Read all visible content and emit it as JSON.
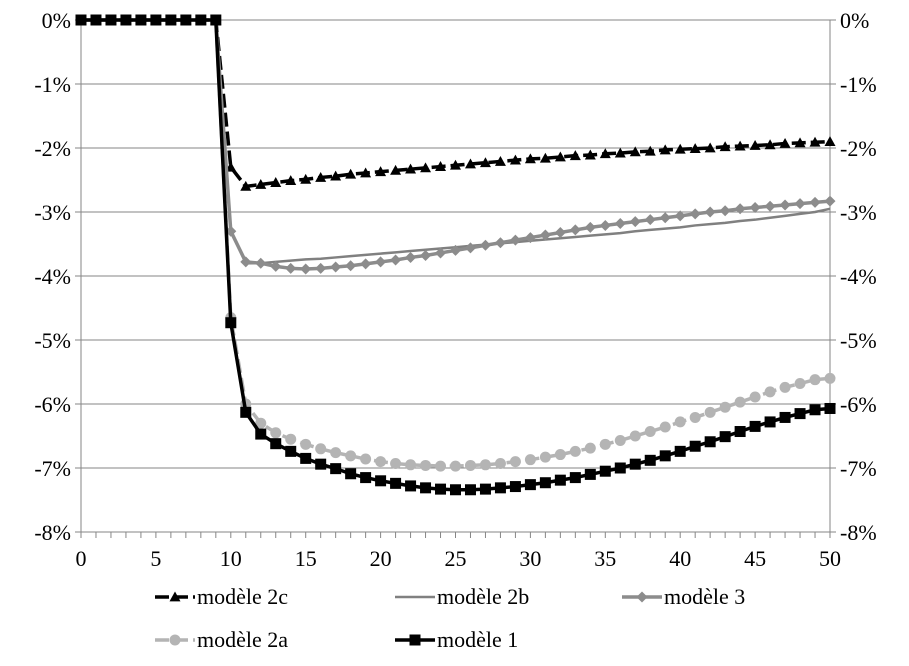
{
  "chart_data": {
    "type": "line",
    "title": "",
    "xlabel": "",
    "ylabel": "",
    "xlim": [
      0,
      50
    ],
    "ylim": [
      -8,
      0
    ],
    "x_ticks": [
      0,
      5,
      10,
      15,
      20,
      25,
      30,
      35,
      40,
      45,
      50
    ],
    "y_ticks": [
      "0%",
      "-1%",
      "-2%",
      "-3%",
      "-4%",
      "-5%",
      "-6%",
      "-7%",
      "-8%"
    ],
    "y_ticks_right": [
      "0%",
      "-1%",
      "-2%",
      "-3%",
      "-4%",
      "-5%",
      "-6%",
      "-7%",
      "-8%"
    ],
    "grid": "horizontal",
    "legend_position": "bottom",
    "series": [
      {
        "name": "modèle 2c",
        "color": "#000000",
        "marker": "triangle",
        "dash": true,
        "x": [
          0,
          1,
          2,
          3,
          4,
          5,
          6,
          7,
          8,
          9,
          10,
          11,
          12,
          13,
          14,
          15,
          16,
          17,
          18,
          19,
          20,
          21,
          22,
          23,
          24,
          25,
          26,
          27,
          28,
          29,
          30,
          31,
          32,
          33,
          34,
          35,
          36,
          37,
          38,
          39,
          40,
          41,
          42,
          43,
          44,
          45,
          46,
          47,
          48,
          49,
          50
        ],
        "y": [
          0,
          0,
          0,
          0,
          0,
          0,
          0,
          0,
          0,
          0,
          -2.3,
          -2.6,
          -2.57,
          -2.54,
          -2.51,
          -2.49,
          -2.46,
          -2.44,
          -2.41,
          -2.39,
          -2.37,
          -2.35,
          -2.33,
          -2.31,
          -2.29,
          -2.27,
          -2.25,
          -2.23,
          -2.21,
          -2.19,
          -2.17,
          -2.16,
          -2.14,
          -2.12,
          -2.11,
          -2.09,
          -2.08,
          -2.06,
          -2.05,
          -2.03,
          -2.02,
          -2.01,
          -2.0,
          -1.98,
          -1.97,
          -1.96,
          -1.95,
          -1.93,
          -1.92,
          -1.91,
          -1.9
        ]
      },
      {
        "name": "modèle 2b",
        "color": "#808080",
        "marker": "none",
        "dash": false,
        "x": [
          0,
          1,
          2,
          3,
          4,
          5,
          6,
          7,
          8,
          9,
          10,
          11,
          12,
          13,
          14,
          15,
          16,
          17,
          18,
          19,
          20,
          21,
          22,
          23,
          24,
          25,
          26,
          27,
          28,
          29,
          30,
          31,
          32,
          33,
          34,
          35,
          36,
          37,
          38,
          39,
          40,
          41,
          42,
          43,
          44,
          45,
          46,
          47,
          48,
          49,
          50
        ],
        "y": [
          0,
          0,
          0,
          0,
          0,
          0,
          0,
          0,
          0,
          0,
          -3.3,
          -3.8,
          -3.8,
          -3.78,
          -3.76,
          -3.74,
          -3.73,
          -3.71,
          -3.69,
          -3.67,
          -3.65,
          -3.63,
          -3.61,
          -3.59,
          -3.57,
          -3.55,
          -3.53,
          -3.51,
          -3.49,
          -3.47,
          -3.45,
          -3.43,
          -3.41,
          -3.39,
          -3.37,
          -3.35,
          -3.33,
          -3.3,
          -3.28,
          -3.26,
          -3.24,
          -3.21,
          -3.19,
          -3.17,
          -3.14,
          -3.12,
          -3.09,
          -3.06,
          -3.03,
          -3.0,
          -2.95
        ]
      },
      {
        "name": "modèle 3",
        "color": "#8c8c8c",
        "marker": "diamond",
        "dash": false,
        "x": [
          0,
          1,
          2,
          3,
          4,
          5,
          6,
          7,
          8,
          9,
          10,
          11,
          12,
          13,
          14,
          15,
          16,
          17,
          18,
          19,
          20,
          21,
          22,
          23,
          24,
          25,
          26,
          27,
          28,
          29,
          30,
          31,
          32,
          33,
          34,
          35,
          36,
          37,
          38,
          39,
          40,
          41,
          42,
          43,
          44,
          45,
          46,
          47,
          48,
          49,
          50
        ],
        "y": [
          0,
          0,
          0,
          0,
          0,
          0,
          0,
          0,
          0,
          0,
          -3.3,
          -3.78,
          -3.8,
          -3.85,
          -3.88,
          -3.89,
          -3.88,
          -3.86,
          -3.84,
          -3.81,
          -3.78,
          -3.75,
          -3.71,
          -3.68,
          -3.64,
          -3.6,
          -3.56,
          -3.52,
          -3.48,
          -3.44,
          -3.4,
          -3.36,
          -3.32,
          -3.28,
          -3.24,
          -3.21,
          -3.18,
          -3.15,
          -3.12,
          -3.09,
          -3.06,
          -3.03,
          -3.0,
          -2.98,
          -2.95,
          -2.93,
          -2.91,
          -2.89,
          -2.87,
          -2.85,
          -2.83
        ]
      },
      {
        "name": "modèle 2a",
        "color": "#b4b4b4",
        "marker": "circle",
        "dash": true,
        "x": [
          0,
          1,
          2,
          3,
          4,
          5,
          6,
          7,
          8,
          9,
          10,
          11,
          12,
          13,
          14,
          15,
          16,
          17,
          18,
          19,
          20,
          21,
          22,
          23,
          24,
          25,
          26,
          27,
          28,
          29,
          30,
          31,
          32,
          33,
          34,
          35,
          36,
          37,
          38,
          39,
          40,
          41,
          42,
          43,
          44,
          45,
          46,
          47,
          48,
          49,
          50
        ],
        "y": [
          0,
          0,
          0,
          0,
          0,
          0,
          0,
          0,
          0,
          0,
          -4.65,
          -6.0,
          -6.3,
          -6.45,
          -6.55,
          -6.63,
          -6.7,
          -6.76,
          -6.81,
          -6.86,
          -6.9,
          -6.93,
          -6.95,
          -6.96,
          -6.97,
          -6.97,
          -6.96,
          -6.95,
          -6.93,
          -6.9,
          -6.87,
          -6.83,
          -6.79,
          -6.74,
          -6.69,
          -6.63,
          -6.57,
          -6.5,
          -6.43,
          -6.36,
          -6.28,
          -6.21,
          -6.13,
          -6.05,
          -5.97,
          -5.89,
          -5.81,
          -5.74,
          -5.68,
          -5.62,
          -5.6
        ]
      },
      {
        "name": "modèle 1",
        "color": "#000000",
        "marker": "square",
        "dash": false,
        "x": [
          0,
          1,
          2,
          3,
          4,
          5,
          6,
          7,
          8,
          9,
          10,
          11,
          12,
          13,
          14,
          15,
          16,
          17,
          18,
          19,
          20,
          21,
          22,
          23,
          24,
          25,
          26,
          27,
          28,
          29,
          30,
          31,
          32,
          33,
          34,
          35,
          36,
          37,
          38,
          39,
          40,
          41,
          42,
          43,
          44,
          45,
          46,
          47,
          48,
          49,
          50
        ],
        "y": [
          0,
          0,
          0,
          0,
          0,
          0,
          0,
          0,
          0,
          0,
          -4.73,
          -6.13,
          -6.47,
          -6.62,
          -6.74,
          -6.85,
          -6.94,
          -7.01,
          -7.09,
          -7.15,
          -7.2,
          -7.24,
          -7.28,
          -7.31,
          -7.33,
          -7.34,
          -7.34,
          -7.33,
          -7.31,
          -7.29,
          -7.26,
          -7.23,
          -7.19,
          -7.15,
          -7.1,
          -7.05,
          -7.0,
          -6.94,
          -6.88,
          -6.81,
          -6.74,
          -6.66,
          -6.59,
          -6.51,
          -6.43,
          -6.35,
          -6.28,
          -6.21,
          -6.15,
          -6.09,
          -6.07
        ]
      }
    ]
  }
}
